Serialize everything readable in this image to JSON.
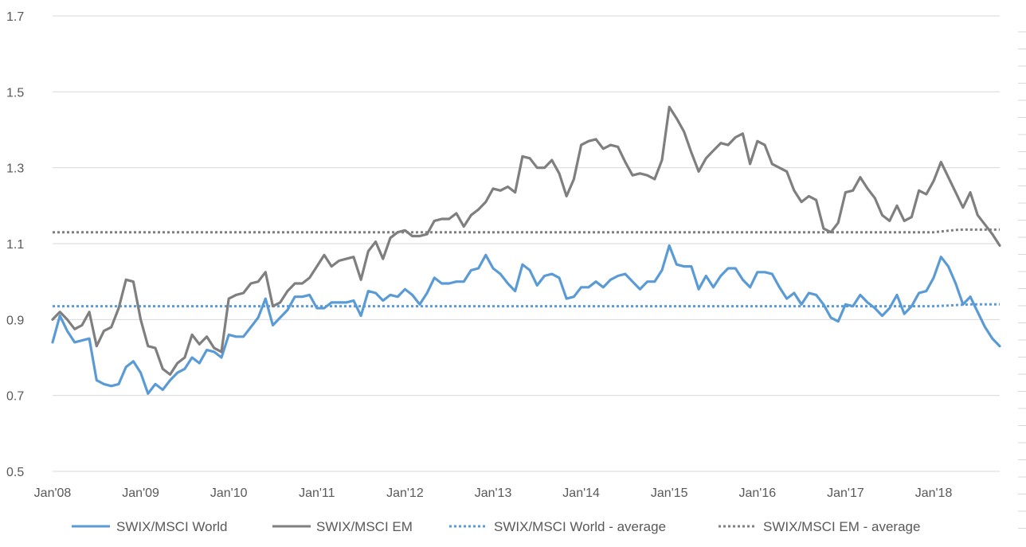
{
  "chart_data": {
    "type": "line",
    "title": "",
    "xlabel": "",
    "ylabel": "",
    "ylim": [
      0.5,
      1.7
    ],
    "yticks": [
      "0.5",
      "0.7",
      "0.9",
      "1.1",
      "1.3",
      "1.5",
      "1.7"
    ],
    "grid": true,
    "legend_position": "bottom",
    "x_tick_labels": [
      "Jan'08",
      "Jan'09",
      "Jan'10",
      "Jan'11",
      "Jan'12",
      "Jan'13",
      "Jan'14",
      "Jan'15",
      "Jan'16",
      "Jan'17",
      "Jan'18"
    ],
    "x_start": "2008-01",
    "x_end": "2018-11",
    "colors": {
      "world": "#5b9bd5",
      "em": "#7f7f7f",
      "grid": "#d9d9d9"
    },
    "series": [
      {
        "name": "SWIX/MSCI World",
        "style": "solid",
        "color": "#5b9bd5",
        "values": [
          0.84,
          0.91,
          0.87,
          0.84,
          0.845,
          0.85,
          0.74,
          0.73,
          0.725,
          0.73,
          0.775,
          0.79,
          0.76,
          0.705,
          0.73,
          0.715,
          0.74,
          0.76,
          0.77,
          0.8,
          0.785,
          0.82,
          0.815,
          0.8,
          0.86,
          0.855,
          0.855,
          0.88,
          0.905,
          0.955,
          0.885,
          0.905,
          0.925,
          0.96,
          0.96,
          0.965,
          0.93,
          0.93,
          0.945,
          0.945,
          0.945,
          0.95,
          0.91,
          0.975,
          0.97,
          0.95,
          0.965,
          0.96,
          0.98,
          0.965,
          0.94,
          0.97,
          1.01,
          0.995,
          0.995,
          1.0,
          1.0,
          1.03,
          1.035,
          1.07,
          1.035,
          1.02,
          0.995,
          0.975,
          1.045,
          1.03,
          0.99,
          1.015,
          1.02,
          1.01,
          0.955,
          0.96,
          0.985,
          0.985,
          1.0,
          0.985,
          1.005,
          1.015,
          1.02,
          1.0,
          0.98,
          1.0,
          1.0,
          1.03,
          1.095,
          1.045,
          1.04,
          1.04,
          0.98,
          1.015,
          0.985,
          1.015,
          1.035,
          1.035,
          1.005,
          0.985,
          1.025,
          1.025,
          1.02,
          0.985,
          0.955,
          0.97,
          0.94,
          0.97,
          0.965,
          0.94,
          0.905,
          0.895,
          0.94,
          0.935,
          0.965,
          0.945,
          0.93,
          0.91,
          0.93,
          0.965,
          0.915,
          0.935,
          0.97,
          0.975,
          1.01,
          1.065,
          1.04,
          0.995,
          0.94,
          0.96,
          0.92,
          0.88,
          0.85,
          0.83
        ]
      },
      {
        "name": "SWIX/MSCI EM",
        "style": "solid",
        "color": "#7f7f7f",
        "values": [
          0.9,
          0.92,
          0.9,
          0.875,
          0.885,
          0.92,
          0.83,
          0.87,
          0.88,
          0.93,
          1.005,
          1.0,
          0.9,
          0.83,
          0.825,
          0.77,
          0.755,
          0.785,
          0.8,
          0.86,
          0.835,
          0.855,
          0.825,
          0.815,
          0.955,
          0.965,
          0.97,
          0.995,
          1.0,
          1.025,
          0.935,
          0.945,
          0.975,
          0.995,
          0.995,
          1.01,
          1.04,
          1.07,
          1.04,
          1.055,
          1.06,
          1.065,
          1.005,
          1.08,
          1.105,
          1.06,
          1.115,
          1.13,
          1.135,
          1.12,
          1.12,
          1.125,
          1.16,
          1.165,
          1.165,
          1.18,
          1.145,
          1.175,
          1.19,
          1.21,
          1.245,
          1.24,
          1.25,
          1.235,
          1.33,
          1.325,
          1.3,
          1.3,
          1.32,
          1.285,
          1.225,
          1.27,
          1.36,
          1.37,
          1.375,
          1.35,
          1.36,
          1.355,
          1.315,
          1.28,
          1.285,
          1.28,
          1.27,
          1.32,
          1.46,
          1.43,
          1.395,
          1.34,
          1.29,
          1.325,
          1.345,
          1.365,
          1.36,
          1.38,
          1.39,
          1.31,
          1.37,
          1.36,
          1.31,
          1.3,
          1.29,
          1.24,
          1.21,
          1.225,
          1.215,
          1.14,
          1.13,
          1.155,
          1.235,
          1.24,
          1.275,
          1.245,
          1.22,
          1.175,
          1.16,
          1.2,
          1.16,
          1.17,
          1.24,
          1.23,
          1.265,
          1.315,
          1.275,
          1.235,
          1.195,
          1.235,
          1.175,
          1.15,
          1.125,
          1.095
        ]
      },
      {
        "name": "SWIX/MSCI World - average",
        "style": "dotted",
        "color": "#5b9bd5",
        "values": [
          0.935,
          0.935,
          0.935,
          0.935,
          0.935,
          0.935,
          0.935,
          0.935,
          0.935,
          0.935,
          0.935,
          0.935,
          0.935,
          0.935,
          0.935,
          0.935,
          0.935,
          0.935,
          0.935,
          0.935,
          0.935,
          0.935,
          0.935,
          0.935,
          0.935,
          0.935,
          0.935,
          0.935,
          0.935,
          0.935,
          0.935,
          0.935,
          0.935,
          0.935,
          0.935,
          0.935,
          0.935,
          0.935,
          0.935,
          0.935,
          0.935,
          0.935,
          0.935,
          0.935,
          0.935,
          0.935,
          0.935,
          0.935,
          0.935,
          0.935,
          0.935,
          0.935,
          0.935,
          0.935,
          0.935,
          0.935,
          0.935,
          0.935,
          0.935,
          0.935,
          0.935,
          0.935,
          0.935,
          0.935,
          0.935,
          0.935,
          0.935,
          0.935,
          0.935,
          0.935,
          0.935,
          0.935,
          0.935,
          0.935,
          0.935,
          0.935,
          0.935,
          0.935,
          0.935,
          0.935,
          0.935,
          0.935,
          0.935,
          0.935,
          0.935,
          0.935,
          0.935,
          0.935,
          0.935,
          0.935,
          0.935,
          0.935,
          0.935,
          0.935,
          0.935,
          0.935,
          0.935,
          0.935,
          0.935,
          0.935,
          0.935,
          0.935,
          0.935,
          0.935,
          0.935,
          0.935,
          0.935,
          0.935,
          0.935,
          0.935,
          0.935,
          0.935,
          0.935,
          0.935,
          0.935,
          0.935,
          0.935,
          0.935,
          0.935,
          0.935,
          0.935,
          0.936,
          0.937,
          0.938,
          0.939,
          0.94,
          0.94,
          0.94,
          0.94,
          0.94
        ]
      },
      {
        "name": "SWIX/MSCI EM - average",
        "style": "dotted",
        "color": "#7f7f7f",
        "values": [
          1.13,
          1.13,
          1.13,
          1.13,
          1.13,
          1.13,
          1.13,
          1.13,
          1.13,
          1.13,
          1.13,
          1.13,
          1.13,
          1.13,
          1.13,
          1.13,
          1.13,
          1.13,
          1.13,
          1.13,
          1.13,
          1.13,
          1.13,
          1.13,
          1.13,
          1.13,
          1.13,
          1.13,
          1.13,
          1.13,
          1.13,
          1.13,
          1.13,
          1.13,
          1.13,
          1.13,
          1.13,
          1.13,
          1.13,
          1.13,
          1.13,
          1.13,
          1.13,
          1.13,
          1.13,
          1.13,
          1.13,
          1.13,
          1.13,
          1.13,
          1.13,
          1.13,
          1.13,
          1.13,
          1.13,
          1.13,
          1.13,
          1.13,
          1.13,
          1.13,
          1.13,
          1.13,
          1.13,
          1.13,
          1.13,
          1.13,
          1.13,
          1.13,
          1.13,
          1.13,
          1.13,
          1.13,
          1.13,
          1.13,
          1.13,
          1.13,
          1.13,
          1.13,
          1.13,
          1.13,
          1.13,
          1.13,
          1.13,
          1.13,
          1.13,
          1.13,
          1.13,
          1.13,
          1.13,
          1.13,
          1.13,
          1.13,
          1.13,
          1.13,
          1.13,
          1.13,
          1.13,
          1.13,
          1.13,
          1.13,
          1.13,
          1.13,
          1.13,
          1.13,
          1.13,
          1.13,
          1.13,
          1.13,
          1.13,
          1.13,
          1.13,
          1.13,
          1.13,
          1.13,
          1.13,
          1.13,
          1.13,
          1.13,
          1.13,
          1.13,
          1.13,
          1.132,
          1.134,
          1.136,
          1.137,
          1.137,
          1.137,
          1.137,
          1.137,
          1.137
        ]
      }
    ]
  }
}
